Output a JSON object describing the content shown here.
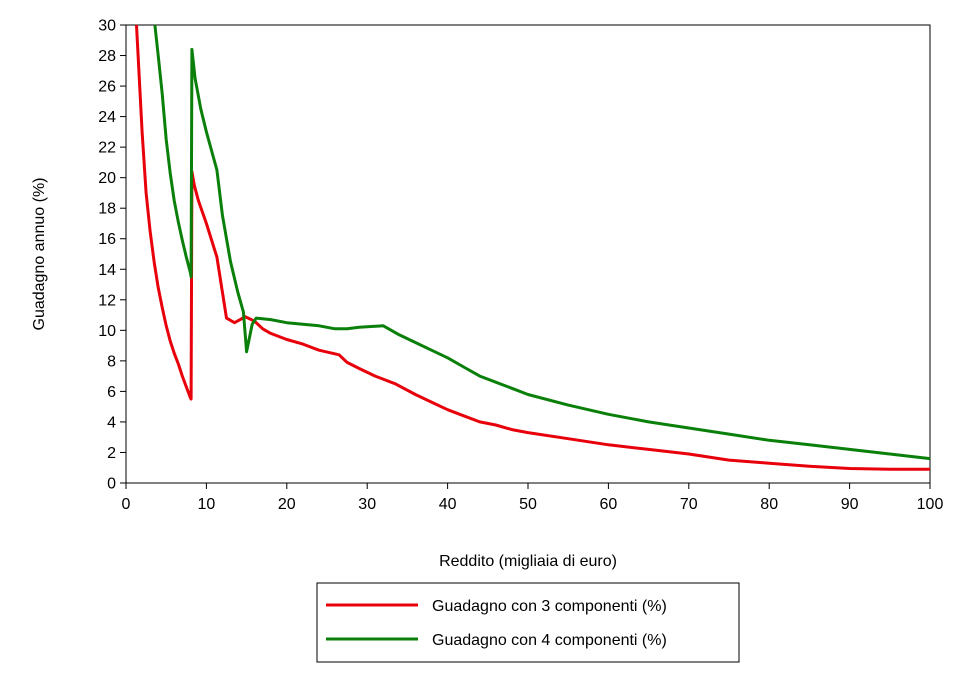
{
  "chart_data": {
    "type": "line",
    "title": "",
    "xlabel": "Reddito (migliaia di euro)",
    "ylabel": "Guadagno annuo (%)",
    "xlim": [
      0,
      100
    ],
    "ylim": [
      0,
      30
    ],
    "xticks": [
      0,
      10,
      20,
      30,
      40,
      50,
      60,
      70,
      80,
      90,
      100
    ],
    "yticks": [
      0,
      2,
      4,
      6,
      8,
      10,
      12,
      14,
      16,
      18,
      20,
      22,
      24,
      26,
      28,
      30
    ],
    "grid": false,
    "legend_position": "bottom",
    "series": [
      {
        "name": "Guadagno con 3 componenti (%)",
        "color": "#e8000b",
        "points": [
          [
            1.3,
            30
          ],
          [
            1.6,
            27
          ],
          [
            2,
            23
          ],
          [
            2.5,
            19
          ],
          [
            3,
            16.5
          ],
          [
            3.5,
            14.5
          ],
          [
            4,
            12.8
          ],
          [
            4.5,
            11.5
          ],
          [
            5,
            10.3
          ],
          [
            5.5,
            9.3
          ],
          [
            6,
            8.5
          ],
          [
            6.5,
            7.8
          ],
          [
            7,
            7
          ],
          [
            7.5,
            6.3
          ],
          [
            8,
            5.6
          ],
          [
            8.1,
            5.5
          ],
          [
            8.2,
            20.4
          ],
          [
            8.5,
            19.5
          ],
          [
            9,
            18.5
          ],
          [
            10,
            17
          ],
          [
            11.3,
            14.8
          ],
          [
            12.5,
            10.8
          ],
          [
            13.5,
            10.5
          ],
          [
            14.2,
            10.7
          ],
          [
            14.8,
            10.9
          ],
          [
            16,
            10.6
          ],
          [
            17,
            10.1
          ],
          [
            18,
            9.8
          ],
          [
            20,
            9.4
          ],
          [
            22,
            9.1
          ],
          [
            24,
            8.7
          ],
          [
            26.5,
            8.4
          ],
          [
            27.5,
            7.9
          ],
          [
            29,
            7.5
          ],
          [
            31,
            7
          ],
          [
            33.5,
            6.5
          ],
          [
            36,
            5.8
          ],
          [
            38,
            5.3
          ],
          [
            40,
            4.8
          ],
          [
            42,
            4.4
          ],
          [
            44,
            4
          ],
          [
            46,
            3.8
          ],
          [
            48,
            3.5
          ],
          [
            50,
            3.3
          ],
          [
            55,
            2.9
          ],
          [
            60,
            2.5
          ],
          [
            65,
            2.2
          ],
          [
            70,
            1.9
          ],
          [
            75,
            1.5
          ],
          [
            80,
            1.3
          ],
          [
            85,
            1.1
          ],
          [
            90,
            0.95
          ],
          [
            95,
            0.9
          ],
          [
            100,
            0.9
          ]
        ]
      },
      {
        "name": "Guadagno con 4 componenti (%)",
        "color": "#0a800a",
        "points": [
          [
            3.6,
            30
          ],
          [
            4,
            28
          ],
          [
            4.5,
            25.5
          ],
          [
            5,
            22.5
          ],
          [
            5.5,
            20.3
          ],
          [
            6,
            18.5
          ],
          [
            6.5,
            17.1
          ],
          [
            7,
            15.9
          ],
          [
            7.5,
            14.8
          ],
          [
            8,
            13.8
          ],
          [
            8.1,
            13.5
          ],
          [
            8.2,
            28.4
          ],
          [
            8.6,
            26.5
          ],
          [
            9.3,
            24.5
          ],
          [
            10,
            23
          ],
          [
            11.3,
            20.5
          ],
          [
            12,
            17.5
          ],
          [
            13,
            14.5
          ],
          [
            13.9,
            12.5
          ],
          [
            14.6,
            11.2
          ],
          [
            15,
            8.6
          ],
          [
            15.7,
            10.4
          ],
          [
            16.2,
            10.8
          ],
          [
            18,
            10.7
          ],
          [
            20,
            10.5
          ],
          [
            22,
            10.4
          ],
          [
            24,
            10.3
          ],
          [
            26,
            10.1
          ],
          [
            27.5,
            10.1
          ],
          [
            29,
            10.2
          ],
          [
            30.5,
            10.25
          ],
          [
            32,
            10.3
          ],
          [
            34,
            9.7
          ],
          [
            36,
            9.2
          ],
          [
            38,
            8.7
          ],
          [
            40,
            8.2
          ],
          [
            42,
            7.6
          ],
          [
            44,
            7
          ],
          [
            46,
            6.6
          ],
          [
            48,
            6.2
          ],
          [
            50,
            5.8
          ],
          [
            55,
            5.1
          ],
          [
            60,
            4.5
          ],
          [
            65,
            4
          ],
          [
            70,
            3.6
          ],
          [
            75,
            3.2
          ],
          [
            80,
            2.8
          ],
          [
            85,
            2.5
          ],
          [
            90,
            2.2
          ],
          [
            95,
            1.9
          ],
          [
            100,
            1.6
          ]
        ]
      }
    ]
  }
}
